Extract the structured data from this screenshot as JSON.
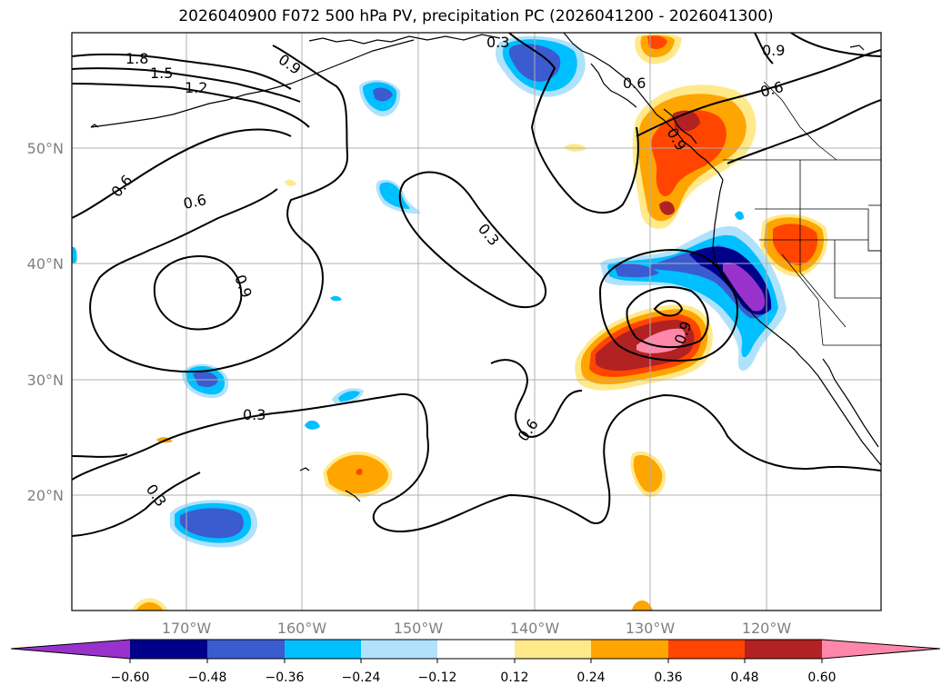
{
  "title": "2026040900 F072 500 hPa PV, precipitation PC (2026041200 - 2026041300)",
  "lon_labels": [
    "170°W",
    "160°W",
    "150°W",
    "140°W",
    "130°W",
    "120°W"
  ],
  "lat_labels": [
    "50°N",
    "40°N",
    "30°N",
    "20°N"
  ],
  "contour_labels": [
    "1.8",
    "1.5",
    "1.2",
    "0.9",
    "0.3",
    "0.6",
    "0.6",
    "0.6",
    "0.9",
    "0.9",
    "0.6",
    "0.9",
    "0.3",
    "0.6",
    "0.3",
    "0.3",
    "0.9"
  ],
  "colorbar": {
    "ticks": [
      "−0.60",
      "−0.48",
      "−0.36",
      "−0.24",
      "−0.12",
      "0.12",
      "0.24",
      "0.36",
      "0.48",
      "0.60"
    ],
    "colors": {
      "under": "#9932cc",
      "n048": "#00008b",
      "n036": "#3b5bd1",
      "n024": "#00bfff",
      "n012": "#b0e2fb",
      "zero": "#ffffff",
      "p012": "#ffe98a",
      "p024": "#ffa500",
      "p036": "#ff4500",
      "p048": "#b22222",
      "over": "#ff88aa"
    }
  }
}
